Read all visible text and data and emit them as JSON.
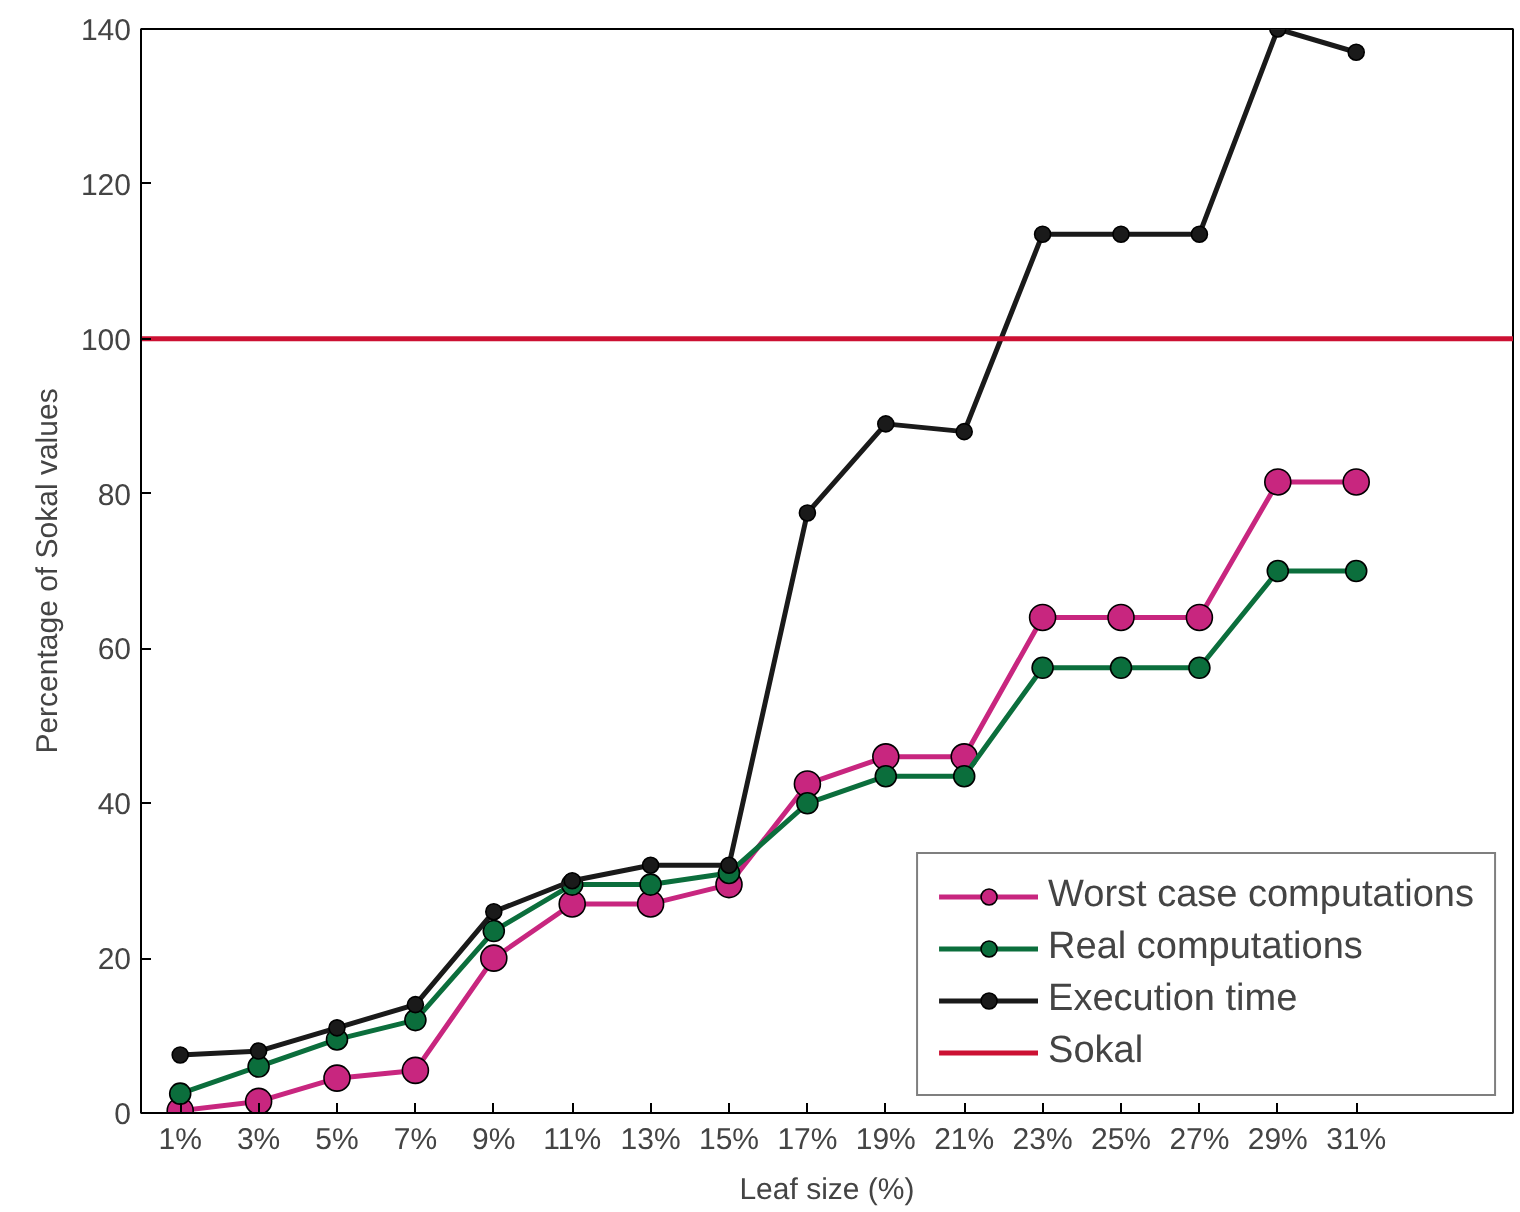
{
  "chart_data": {
    "type": "line",
    "xlabel": "Leaf size (%)",
    "ylabel": "Percentage of Sokal values",
    "x": [
      1,
      3,
      5,
      7,
      9,
      11,
      13,
      15,
      17,
      19,
      21,
      23,
      25,
      27,
      29,
      31
    ],
    "xlim": [
      0,
      35
    ],
    "xticks": [
      {
        "value": 1,
        "label": "1%"
      },
      {
        "value": 3,
        "label": "3%"
      },
      {
        "value": 5,
        "label": "5%"
      },
      {
        "value": 7,
        "label": "7%"
      },
      {
        "value": 9,
        "label": "9%"
      },
      {
        "value": 11,
        "label": "11%"
      },
      {
        "value": 13,
        "label": "13%"
      },
      {
        "value": 15,
        "label": "15%"
      },
      {
        "value": 17,
        "label": "17%"
      },
      {
        "value": 19,
        "label": "19%"
      },
      {
        "value": 21,
        "label": "21%"
      },
      {
        "value": 23,
        "label": "23%"
      },
      {
        "value": 25,
        "label": "25%"
      },
      {
        "value": 27,
        "label": "27%"
      },
      {
        "value": 29,
        "label": "29%"
      },
      {
        "value": 31,
        "label": "31%"
      }
    ],
    "ylim": [
      0,
      140
    ],
    "yticks": [
      0,
      20,
      40,
      60,
      80,
      100,
      120,
      140
    ],
    "series": [
      {
        "name": "Worst case computations",
        "color": "#c8267f",
        "values": [
          0.3,
          1.5,
          4.5,
          5.5,
          20,
          27,
          27,
          29.5,
          42.5,
          46,
          46,
          64,
          64,
          64,
          81.5,
          81.5
        ]
      },
      {
        "name": "Real computations",
        "color": "#0b6e3c",
        "values": [
          2.5,
          6,
          9.5,
          12,
          23.5,
          29.5,
          29.5,
          31,
          40,
          43.5,
          43.5,
          57.5,
          57.5,
          57.5,
          70,
          70
        ]
      },
      {
        "name": "Execution time",
        "color": "#1a1a1a",
        "values": [
          7.5,
          8,
          11,
          14,
          26,
          30,
          32,
          32,
          77.5,
          89,
          88,
          113.5,
          113.5,
          113.5,
          140,
          137
        ]
      }
    ],
    "ref_lines": [
      {
        "axis": "y",
        "value": 100,
        "label": "Sokal",
        "color": "#cc1133"
      }
    ],
    "grid": false,
    "legend": "bottom right",
    "marker": "circle",
    "line_style": "solid"
  }
}
